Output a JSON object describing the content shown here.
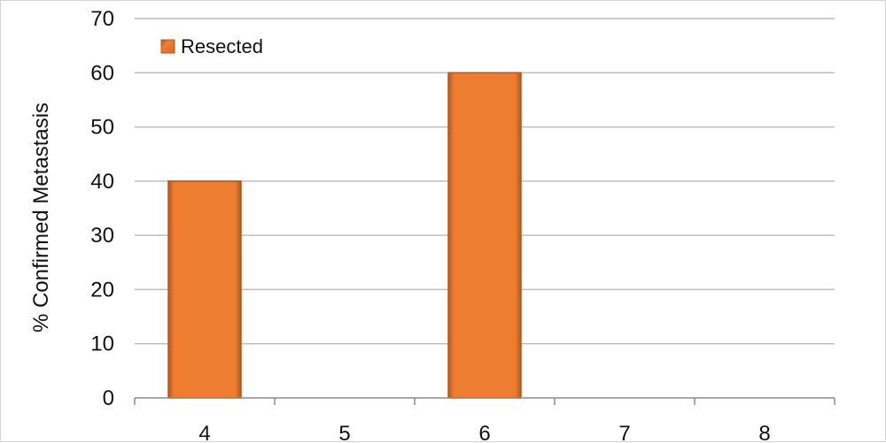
{
  "chart_data": {
    "type": "bar",
    "title": "",
    "xlabel": "",
    "ylabel": "% Confirmed Metastasis",
    "categories": [
      "4",
      "5",
      "6",
      "7",
      "8"
    ],
    "series": [
      {
        "name": "Resected",
        "values": [
          40,
          0,
          60,
          0,
          0
        ]
      }
    ],
    "ylim": [
      0,
      70
    ],
    "yticks": [
      "0",
      "10",
      "20",
      "30",
      "40",
      "50",
      "60",
      "70"
    ],
    "grid": true,
    "legend": "top-left",
    "colors": {
      "bar_fill": "#ed7d31",
      "bar_stroke": "#b4571f",
      "grid": "#bfbfbf",
      "axis": "#8c8c8c",
      "text": "#111111"
    }
  }
}
